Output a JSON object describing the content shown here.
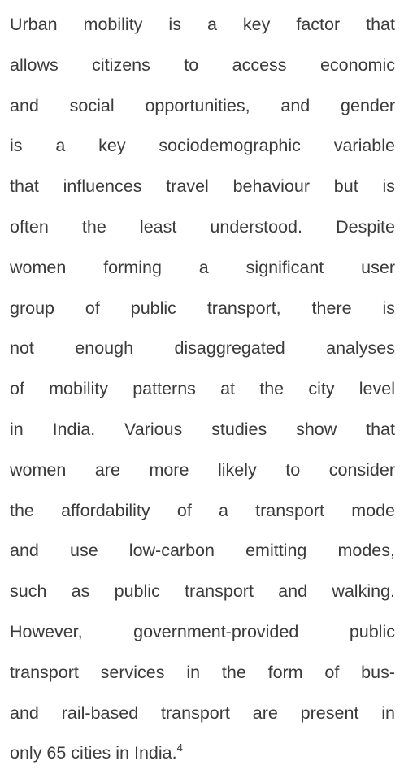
{
  "paragraph": {
    "lines": [
      "Urban mobility is a key factor that",
      "allows citizens to access economic",
      "and social opportunities, and gender",
      "is a key sociodemographic variable",
      "that influences travel behaviour but is",
      "often the least understood. Despite",
      "women forming a significant user",
      "group of public transport, there is",
      "not enough disaggregated analyses",
      "of mobility patterns at the city level",
      "in India. Various studies show that",
      "women are more likely to consider",
      "the affordability of a transport mode",
      "and use low-carbon emitting modes,",
      "such as public transport and walking.",
      "However, government-provided public",
      "transport services in the form of bus-",
      "and rail-based transport are present in",
      "only 65 cities in India."
    ],
    "footnote_ref": "4"
  }
}
